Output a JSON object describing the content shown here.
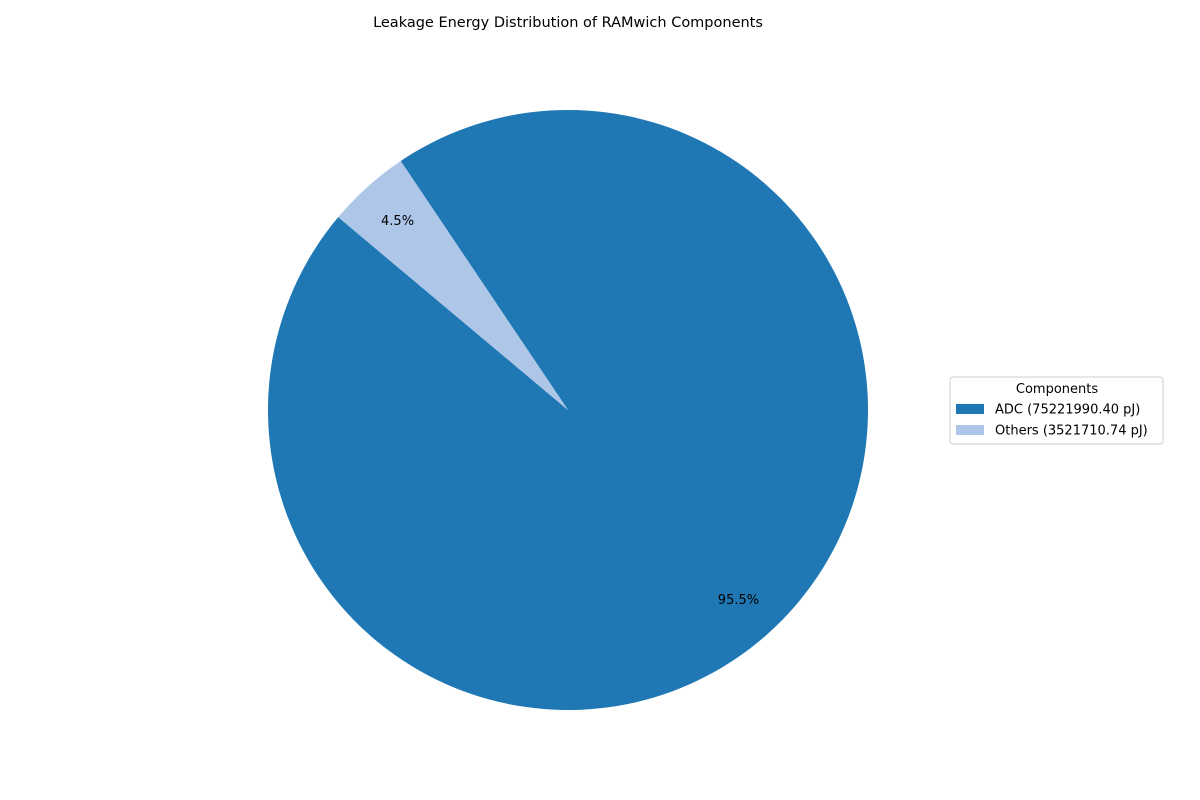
{
  "chart_data": {
    "type": "pie",
    "title": "Leakage Energy Distribution of RAMwich Components",
    "start_angle_deg": 140,
    "direction": "counterclockwise",
    "slices": [
      {
        "label": "ADC (75221990.40 pJ)",
        "value": 75221990.4,
        "percent_label": "95.5%",
        "color": "#1f77b4"
      },
      {
        "label": "Others (3521710.74 pJ)",
        "value": 3521710.74,
        "percent_label": "4.5%",
        "color": "#aec7e8"
      }
    ],
    "legend": {
      "title": "Components",
      "placement": "center-right"
    }
  }
}
